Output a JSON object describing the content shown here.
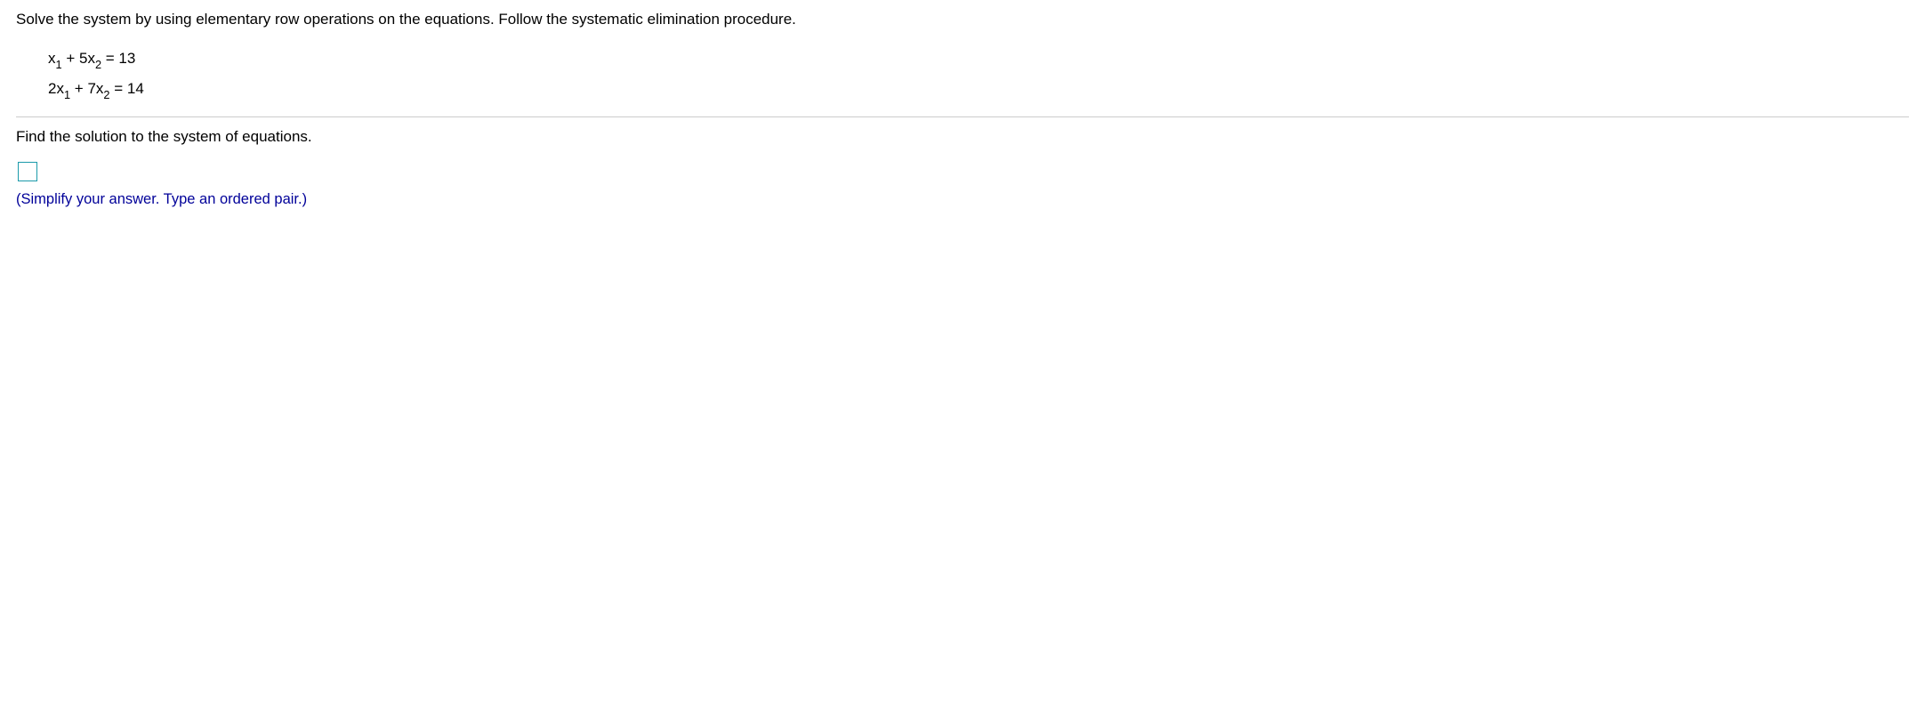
{
  "question": {
    "intro": "Solve the system by using elementary row operations on the equations. Follow the systematic elimination procedure.",
    "eq1": {
      "coef1": "",
      "var1": "x",
      "sub1": "1",
      "op": " + ",
      "coef2": "5",
      "var2": "x",
      "sub2": "2",
      "eq": " = ",
      "rhs": "13"
    },
    "eq2": {
      "coef1": "2",
      "var1": "x",
      "sub1": "1",
      "op": " + ",
      "coef2": "7",
      "var2": "x",
      "sub2": "2",
      "eq": " = ",
      "rhs": "14"
    },
    "prompt": "Find the solution to the system of equations.",
    "hint": "(Simplify your answer. Type an ordered pair.)"
  },
  "colors": {
    "answer_box_border": "#1b9aaa",
    "hint_text": "#000099",
    "rule": "#cccccc"
  }
}
